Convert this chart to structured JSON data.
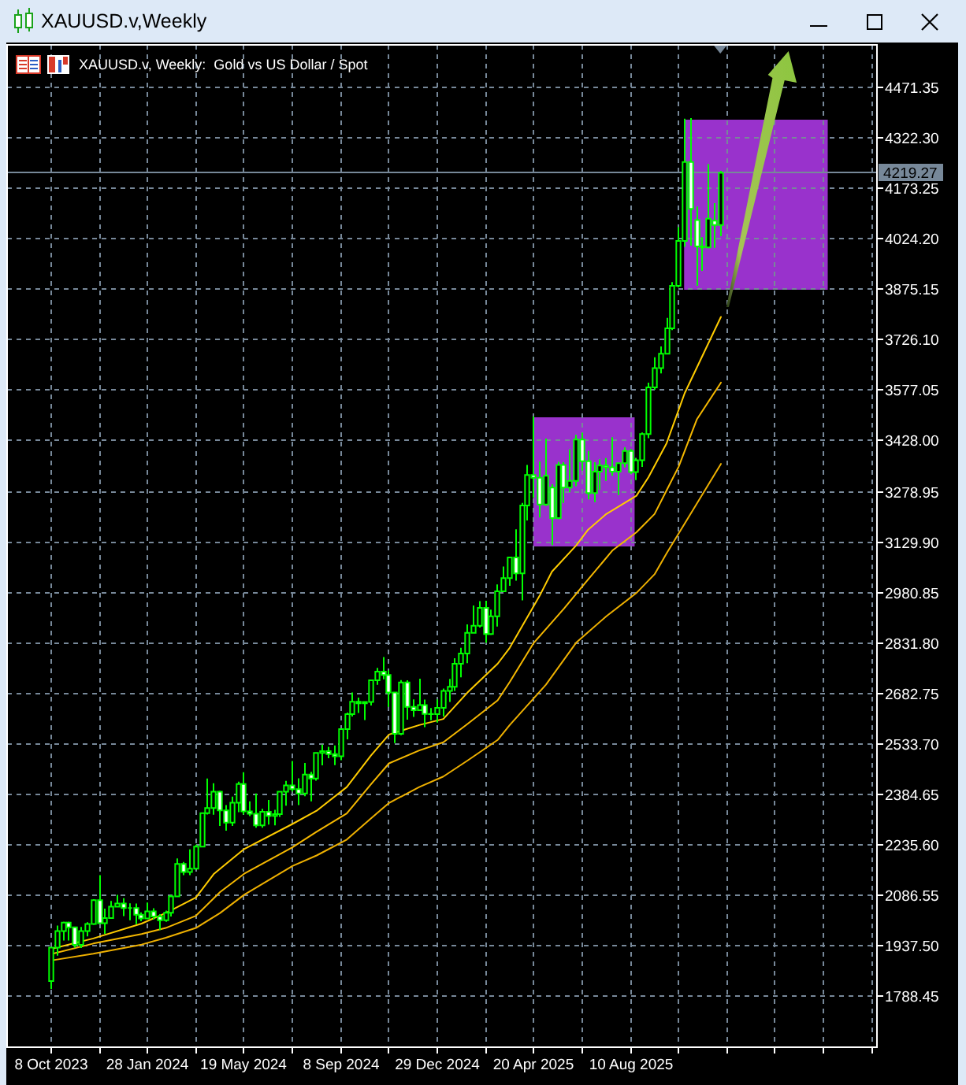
{
  "chart_data": {
    "type": "candlestick",
    "title": "XAUUSD.v,Weekly",
    "subtitle": "XAUUSD.v, Weekly:  Gold vs US Dollar / Spot",
    "color": "#00ff00",
    "x": [
      "2023-10-08",
      "2023-10-15",
      "2023-10-22",
      "2023-10-29",
      "2023-11-05",
      "2023-11-12",
      "2023-11-19",
      "2023-11-26",
      "2023-12-03",
      "2023-12-10",
      "2023-12-17",
      "2023-12-24",
      "2023-12-31",
      "2024-01-07",
      "2024-01-14",
      "2024-01-21",
      "2024-01-28",
      "2024-02-04",
      "2024-02-11",
      "2024-02-18",
      "2024-02-25",
      "2024-03-03",
      "2024-03-10",
      "2024-03-17",
      "2024-03-24",
      "2024-03-31",
      "2024-04-07",
      "2024-04-14",
      "2024-04-21",
      "2024-04-28",
      "2024-05-05",
      "2024-05-12",
      "2024-05-19",
      "2024-05-26",
      "2024-06-02",
      "2024-06-09",
      "2024-06-16",
      "2024-06-23",
      "2024-06-30",
      "2024-07-07",
      "2024-07-14",
      "2024-07-21",
      "2024-07-28",
      "2024-08-04",
      "2024-08-11",
      "2024-08-18",
      "2024-08-25",
      "2024-09-01",
      "2024-09-08",
      "2024-09-15",
      "2024-09-22",
      "2024-09-29",
      "2024-10-06",
      "2024-10-13",
      "2024-10-20",
      "2024-10-27",
      "2024-11-03",
      "2024-11-10",
      "2024-11-17",
      "2024-11-24",
      "2024-12-01",
      "2024-12-08",
      "2024-12-15",
      "2024-12-22",
      "2024-12-29",
      "2025-01-05",
      "2025-01-12",
      "2025-01-19",
      "2025-01-26",
      "2025-02-02",
      "2025-02-09",
      "2025-02-16",
      "2025-02-23",
      "2025-03-02",
      "2025-03-09",
      "2025-03-16",
      "2025-03-23",
      "2025-03-30",
      "2025-04-06",
      "2025-04-13",
      "2025-04-20",
      "2025-04-27",
      "2025-05-04",
      "2025-05-11",
      "2025-05-18",
      "2025-05-25",
      "2025-06-01",
      "2025-06-08",
      "2025-06-15",
      "2025-06-22",
      "2025-06-29",
      "2025-07-06",
      "2025-07-13",
      "2025-07-20",
      "2025-07-27",
      "2025-08-03",
      "2025-08-10",
      "2025-08-17",
      "2025-08-24",
      "2025-08-31",
      "2025-09-07",
      "2025-09-14",
      "2025-09-21",
      "2025-09-28",
      "2025-10-05",
      "2025-10-12",
      "2025-10-19",
      "2025-10-26",
      "2025-11-02",
      "2025-11-09",
      "2025-11-16",
      "2025-11-23"
    ],
    "ohlc": [
      [
        1833,
        1933,
        1810,
        1932
      ],
      [
        1932,
        1997,
        1908,
        1981
      ],
      [
        1981,
        2009,
        1953,
        2006
      ],
      [
        2006,
        2009,
        1953,
        1992
      ],
      [
        1992,
        1993,
        1932,
        1940
      ],
      [
        1940,
        1993,
        1931,
        1981
      ],
      [
        1981,
        2007,
        1965,
        2002
      ],
      [
        2002,
        2075,
        1999,
        2072
      ],
      [
        2072,
        2146,
        2004,
        2004
      ],
      [
        2004,
        2047,
        1973,
        2019
      ],
      [
        2019,
        2070,
        2017,
        2053
      ],
      [
        2053,
        2088,
        2052,
        2062
      ],
      [
        2062,
        2078,
        2025,
        2049
      ],
      [
        2049,
        2063,
        2013,
        2049
      ],
      [
        2049,
        2062,
        2001,
        2029
      ],
      [
        2029,
        2036,
        2010,
        2018
      ],
      [
        2018,
        2065,
        2016,
        2039
      ],
      [
        2039,
        2048,
        2015,
        2024
      ],
      [
        2024,
        2031,
        1984,
        2013
      ],
      [
        2013,
        2041,
        2008,
        2035
      ],
      [
        2035,
        2088,
        2024,
        2083
      ],
      [
        2083,
        2195,
        2083,
        2179
      ],
      [
        2179,
        2185,
        2146,
        2155
      ],
      [
        2155,
        2222,
        2146,
        2165
      ],
      [
        2165,
        2236,
        2163,
        2230
      ],
      [
        2230,
        2331,
        2228,
        2329
      ],
      [
        2329,
        2431,
        2325,
        2344
      ],
      [
        2344,
        2417,
        2324,
        2392
      ],
      [
        2392,
        2395,
        2291,
        2337
      ],
      [
        2337,
        2353,
        2277,
        2301
      ],
      [
        2301,
        2378,
        2291,
        2360
      ],
      [
        2360,
        2422,
        2332,
        2415
      ],
      [
        2415,
        2450,
        2325,
        2334
      ],
      [
        2334,
        2364,
        2320,
        2327
      ],
      [
        2327,
        2387,
        2286,
        2293
      ],
      [
        2293,
        2342,
        2286,
        2333
      ],
      [
        2333,
        2368,
        2295,
        2321
      ],
      [
        2321,
        2339,
        2293,
        2326
      ],
      [
        2326,
        2392,
        2318,
        2392
      ],
      [
        2392,
        2424,
        2351,
        2411
      ],
      [
        2411,
        2483,
        2393,
        2400
      ],
      [
        2400,
        2432,
        2353,
        2387
      ],
      [
        2387,
        2477,
        2379,
        2443
      ],
      [
        2443,
        2451,
        2364,
        2431
      ],
      [
        2431,
        2509,
        2425,
        2507
      ],
      [
        2507,
        2531,
        2470,
        2512
      ],
      [
        2512,
        2525,
        2491,
        2503
      ],
      [
        2503,
        2529,
        2471,
        2497
      ],
      [
        2497,
        2579,
        2485,
        2577
      ],
      [
        2577,
        2626,
        2547,
        2621
      ],
      [
        2621,
        2685,
        2614,
        2658
      ],
      [
        2658,
        2670,
        2625,
        2653
      ],
      [
        2653,
        2659,
        2604,
        2657
      ],
      [
        2657,
        2722,
        2647,
        2721
      ],
      [
        2721,
        2758,
        2708,
        2747
      ],
      [
        2747,
        2790,
        2724,
        2737
      ],
      [
        2737,
        2750,
        2643,
        2685
      ],
      [
        2685,
        2686,
        2536,
        2563
      ],
      [
        2563,
        2722,
        2559,
        2715
      ],
      [
        2715,
        2721,
        2605,
        2643
      ],
      [
        2643,
        2665,
        2613,
        2633
      ],
      [
        2633,
        2726,
        2632,
        2648
      ],
      [
        2648,
        2664,
        2583,
        2622
      ],
      [
        2622,
        2639,
        2603,
        2621
      ],
      [
        2621,
        2665,
        2596,
        2640
      ],
      [
        2640,
        2697,
        2614,
        2690
      ],
      [
        2690,
        2725,
        2657,
        2702
      ],
      [
        2702,
        2786,
        2690,
        2770
      ],
      [
        2770,
        2817,
        2730,
        2800
      ],
      [
        2800,
        2886,
        2772,
        2861
      ],
      [
        2861,
        2942,
        2861,
        2882
      ],
      [
        2882,
        2955,
        2877,
        2935
      ],
      [
        2935,
        2956,
        2832,
        2858
      ],
      [
        2858,
        2930,
        2855,
        2910
      ],
      [
        2910,
        3004,
        2880,
        2984
      ],
      [
        2984,
        3057,
        2982,
        3023
      ],
      [
        3023,
        3086,
        3000,
        3084
      ],
      [
        3084,
        3167,
        3015,
        3037
      ],
      [
        3037,
        3245,
        2957,
        3237
      ],
      [
        3237,
        3357,
        3193,
        3327
      ],
      [
        3327,
        3500,
        3260,
        3319
      ],
      [
        3319,
        3367,
        3202,
        3240
      ],
      [
        3240,
        3435,
        3236,
        3325
      ],
      [
        3290,
        3300,
        3120,
        3200
      ],
      [
        3200,
        3366,
        3197,
        3357
      ],
      [
        3357,
        3365,
        3245,
        3290
      ],
      [
        3290,
        3403,
        3276,
        3310
      ],
      [
        3310,
        3446,
        3294,
        3432
      ],
      [
        3432,
        3452,
        3340,
        3368
      ],
      [
        3368,
        3398,
        3255,
        3274
      ],
      [
        3274,
        3365,
        3247,
        3337
      ],
      [
        3337,
        3374,
        3283,
        3355
      ],
      [
        3355,
        3377,
        3310,
        3350
      ],
      [
        3350,
        3439,
        3325,
        3337
      ],
      [
        3337,
        3363,
        3268,
        3362
      ],
      [
        3362,
        3409,
        3350,
        3398
      ],
      [
        3398,
        3404,
        3331,
        3336
      ],
      [
        3336,
        3378,
        3312,
        3371
      ],
      [
        3371,
        3453,
        3351,
        3448
      ],
      [
        3448,
        3600,
        3436,
        3586
      ],
      [
        3586,
        3675,
        3579,
        3643
      ],
      [
        3643,
        3707,
        3627,
        3685
      ],
      [
        3685,
        3791,
        3683,
        3760
      ],
      [
        3760,
        3897,
        3755,
        3886
      ],
      [
        3886,
        4059,
        3881,
        4018
      ],
      [
        4018,
        4379,
        4001,
        4251
      ],
      [
        4251,
        4381,
        4004,
        4113
      ],
      [
        4080,
        4120,
        3886,
        4002
      ],
      [
        4002,
        4029,
        3930,
        3999
      ],
      [
        3999,
        4245,
        3998,
        4084
      ],
      [
        4078,
        4130,
        3998,
        4065
      ],
      [
        4065,
        4225,
        4032,
        4219
      ]
    ],
    "series": [
      {
        "type": "line",
        "color": "#ffcc00",
        "x": [
          "2023-10-08",
          "2023-11-26",
          "2024-01-21",
          "2024-02-18",
          "2024-03-24",
          "2024-04-14",
          "2024-05-19",
          "2024-07-14",
          "2024-08-11",
          "2024-09-15",
          "2024-10-13",
          "2024-11-03",
          "2024-12-08",
          "2025-01-05",
          "2025-02-02",
          "2025-03-09",
          "2025-03-23",
          "2025-04-27",
          "2025-05-11",
          "2025-06-08",
          "2025-06-22",
          "2025-07-13",
          "2025-08-17",
          "2025-08-31",
          "2025-09-21",
          "2025-10-12",
          "2025-11-23"
        ],
        "values": [
          1928,
          1959,
          2003,
          2034,
          2080,
          2150,
          2223,
          2297,
          2336,
          2406,
          2499,
          2561,
          2589,
          2607,
          2685,
          2770,
          2817,
          2972,
          3042,
          3119,
          3166,
          3212,
          3266,
          3321,
          3421,
          3569,
          3794
        ]
      },
      {
        "type": "line",
        "color": "#f5b800",
        "x": [
          "2023-10-08",
          "2023-11-26",
          "2024-01-21",
          "2024-02-18",
          "2024-03-24",
          "2024-04-21",
          "2024-05-19",
          "2024-07-14",
          "2024-08-11",
          "2024-09-15",
          "2024-10-13",
          "2024-11-03",
          "2024-12-08",
          "2025-01-05",
          "2025-02-02",
          "2025-03-09",
          "2025-03-23",
          "2025-04-20",
          "2025-05-25",
          "2025-06-22",
          "2025-07-20",
          "2025-08-17",
          "2025-09-07",
          "2025-09-21",
          "2025-10-05",
          "2025-10-26",
          "2025-11-23"
        ],
        "values": [
          1913,
          1944,
          1972,
          1990,
          2026,
          2096,
          2150,
          2228,
          2274,
          2328,
          2414,
          2476,
          2514,
          2538,
          2592,
          2662,
          2716,
          2832,
          2933,
          3019,
          3104,
          3158,
          3212,
          3282,
          3352,
          3491,
          3600
        ]
      },
      {
        "type": "line",
        "color": "#eeb000",
        "x": [
          "2023-10-08",
          "2023-11-26",
          "2024-01-21",
          "2024-02-18",
          "2024-03-24",
          "2024-04-21",
          "2024-05-19",
          "2024-07-14",
          "2024-08-11",
          "2024-09-15",
          "2024-10-13",
          "2024-11-03",
          "2024-12-08",
          "2025-01-05",
          "2025-02-02",
          "2025-03-09",
          "2025-03-23",
          "2025-05-04",
          "2025-06-08",
          "2025-07-13",
          "2025-08-17",
          "2025-09-07",
          "2025-09-21",
          "2025-11-23"
        ],
        "values": [
          1894,
          1914,
          1941,
          1961,
          1990,
          2034,
          2088,
          2173,
          2204,
          2251,
          2313,
          2359,
          2406,
          2437,
          2484,
          2545,
          2589,
          2708,
          2832,
          2910,
          2979,
          3034,
          3096,
          3360
        ]
      }
    ],
    "xlim": [
      "2023-08-18",
      "2026-05-23"
    ],
    "xticks": [
      {
        "value": "2023-10-08",
        "label": "8 Oct 2023"
      },
      {
        "value": "2023-12-03",
        "label": null
      },
      {
        "value": "2024-01-28",
        "label": "28 Jan 2024"
      },
      {
        "value": "2024-03-24",
        "label": null
      },
      {
        "value": "2024-05-19",
        "label": "19 May 2024"
      },
      {
        "value": "2024-07-14",
        "label": null
      },
      {
        "value": "2024-09-08",
        "label": "8 Sep 2024"
      },
      {
        "value": "2024-11-03",
        "label": null
      },
      {
        "value": "2024-12-29",
        "label": "29 Dec 2024"
      },
      {
        "value": "2025-02-23",
        "label": null
      },
      {
        "value": "2025-04-20",
        "label": "20 Apr 2025"
      },
      {
        "value": "2025-06-15",
        "label": null
      },
      {
        "value": "2025-08-10",
        "label": "10 Aug 2025"
      },
      {
        "value": "2025-10-05",
        "label": null
      },
      {
        "value": "2025-11-30",
        "label": null
      },
      {
        "value": "2026-01-25",
        "label": null
      },
      {
        "value": "2026-03-22",
        "label": null
      },
      {
        "value": "2026-05-17",
        "label": null
      }
    ],
    "ylim": [
      1638,
      4597
    ],
    "yticks": [
      4471.35,
      {
        "value": 4322.3,
        "label": "4322.30"
      },
      4173.25,
      {
        "value": 4024.2,
        "label": "4024.20"
      },
      3875.15,
      {
        "value": 3726.1,
        "label": "3726.10"
      },
      3577.05,
      {
        "value": 3428,
        "label": "3428.00"
      },
      3278.95,
      {
        "value": 3129.9,
        "label": "3129.90"
      },
      2980.85,
      {
        "value": 2831.8,
        "label": "2831.80"
      },
      2682.75,
      {
        "value": 2533.7,
        "label": "2533.70"
      },
      2384.65,
      {
        "value": 2235.6,
        "label": "2235.60"
      },
      2086.55,
      {
        "value": 1937.5,
        "label": "1937.50"
      },
      1788.45
    ],
    "ref_lines": [
      {
        "axis": "y",
        "value": 4219.27,
        "label": "4219.27",
        "color": "#778899"
      }
    ],
    "grid": true
  }
}
